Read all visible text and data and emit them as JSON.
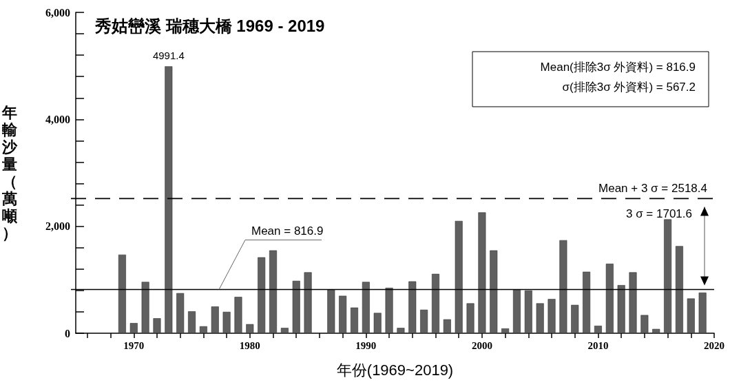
{
  "chart_data": {
    "type": "bar",
    "title": "秀姑巒溪 瑞穗大橋 1969 - 2019",
    "xlabel": "年份(1969~2019)",
    "ylabel": "年輸沙量（萬噸）",
    "x": [
      1969,
      1970,
      1971,
      1972,
      1973,
      1974,
      1975,
      1976,
      1977,
      1978,
      1979,
      1980,
      1981,
      1982,
      1983,
      1984,
      1985,
      1987,
      1988,
      1989,
      1990,
      1991,
      1992,
      1993,
      1994,
      1995,
      1996,
      1997,
      1998,
      1999,
      2000,
      2001,
      2002,
      2003,
      2004,
      2005,
      2006,
      2007,
      2008,
      2009,
      2010,
      2011,
      2012,
      2013,
      2014,
      2015,
      2016,
      2017,
      2018,
      2019
    ],
    "values": [
      1470,
      190,
      960,
      280,
      4991.4,
      750,
      410,
      130,
      500,
      400,
      680,
      170,
      1420,
      1550,
      100,
      980,
      1140,
      820,
      700,
      480,
      960,
      380,
      850,
      100,
      970,
      440,
      1110,
      260,
      2100,
      560,
      2260,
      1550,
      90,
      820,
      800,
      560,
      640,
      1740,
      530,
      1150,
      140,
      1300,
      900,
      1140,
      340,
      80,
      2130,
      1630,
      650,
      760
    ],
    "value_labels": [
      null,
      null,
      null,
      null,
      "4991.4",
      null,
      null,
      null,
      null,
      null,
      null,
      null,
      null,
      null,
      null,
      null,
      null,
      null,
      null,
      null,
      null,
      null,
      null,
      null,
      null,
      null,
      null,
      null,
      null,
      null,
      null,
      null,
      null,
      null,
      null,
      null,
      null,
      null,
      null,
      null,
      null,
      null,
      null,
      null,
      null,
      null,
      null,
      null,
      null,
      null
    ],
    "color": "#606060",
    "xlim": [
      1965,
      2020
    ],
    "xticks": [
      {
        "value": 1966,
        "label": null
      },
      {
        "value": 1968,
        "label": null
      },
      1970,
      {
        "value": 1972,
        "label": null
      },
      {
        "value": 1974,
        "label": null
      },
      {
        "value": 1976,
        "label": null
      },
      {
        "value": 1978,
        "label": null
      },
      1980,
      {
        "value": 1982,
        "label": null
      },
      {
        "value": 1984,
        "label": null
      },
      {
        "value": 1986,
        "label": null
      },
      {
        "value": 1988,
        "label": null
      },
      1990,
      {
        "value": 1992,
        "label": null
      },
      {
        "value": 1994,
        "label": null
      },
      {
        "value": 1996,
        "label": null
      },
      {
        "value": 1998,
        "label": null
      },
      2000,
      {
        "value": 2002,
        "label": null
      },
      {
        "value": 2004,
        "label": null
      },
      {
        "value": 2006,
        "label": null
      },
      {
        "value": 2008,
        "label": null
      },
      2010,
      {
        "value": 2012,
        "label": null
      },
      {
        "value": 2014,
        "label": null
      },
      {
        "value": 2016,
        "label": null
      },
      {
        "value": 2018,
        "label": null
      },
      2020
    ],
    "ylim": [
      0,
      6000
    ],
    "yticks": [
      {
        "value": 0,
        "label": "0"
      },
      {
        "value": 400,
        "label": null
      },
      {
        "value": 800,
        "label": null
      },
      {
        "value": 1200,
        "label": null
      },
      {
        "value": 1600,
        "label": null
      },
      {
        "value": 2000,
        "label": "2,000"
      },
      {
        "value": 2400,
        "label": null
      },
      {
        "value": 2800,
        "label": null
      },
      {
        "value": 3200,
        "label": null
      },
      {
        "value": 3600,
        "label": null
      },
      {
        "value": 4000,
        "label": "4,000"
      },
      {
        "value": 4400,
        "label": null
      },
      {
        "value": 4800,
        "label": null
      },
      {
        "value": 5200,
        "label": null
      },
      {
        "value": 5600,
        "label": null
      },
      {
        "value": 6000,
        "label": "6,000"
      }
    ],
    "ref_lines": [
      {
        "axis": "y",
        "value": 816.9,
        "label": "Mean = 816.9",
        "color": "#000000",
        "line_style": "solid"
      },
      {
        "axis": "y",
        "value": 2518.4,
        "label": "Mean + 3 σ = 2518.4",
        "color": "#000000",
        "line_style": "dashed"
      }
    ],
    "annotations": [
      "Mean(排除3σ 外資料) = 816.9",
      "σ(排除3σ 外資料) = 567.2",
      "3 σ = 1701.6"
    ],
    "grid": false
  }
}
